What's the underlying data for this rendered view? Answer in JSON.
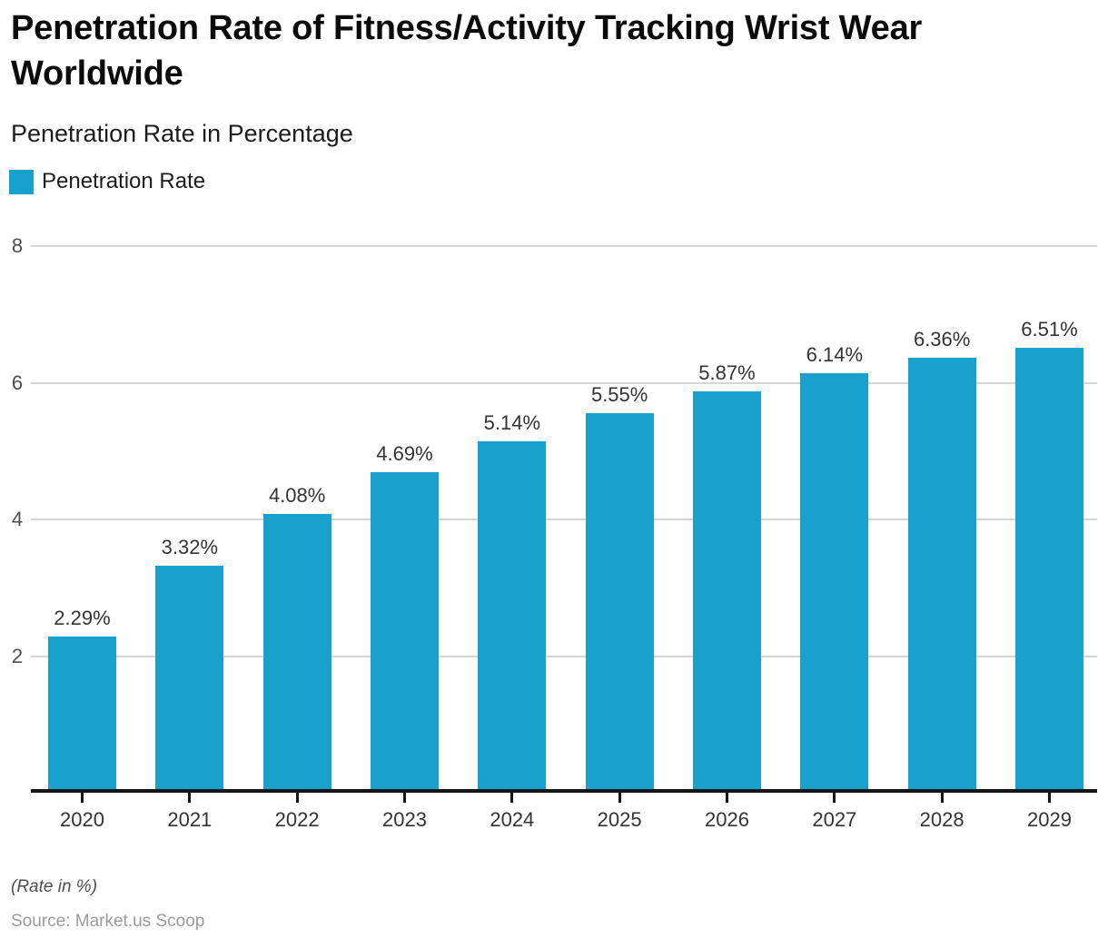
{
  "header": {
    "title": "Penetration Rate of Fitness/Activity Tracking Wrist Wear Worldwide",
    "subtitle": "Penetration Rate in Percentage"
  },
  "legend": {
    "label": "Penetration Rate"
  },
  "footer": {
    "note": "(Rate in %)",
    "source": "Source: Market.us Scoop"
  },
  "colors": {
    "bar": "#18A1CD",
    "gridline": "#D5D5D5",
    "axis": "#141414",
    "title_text": "#0B0B0B",
    "label_text": "#333333",
    "ytick_text": "#4E4E4E",
    "source_text": "#9B9B9B"
  },
  "chart_data": {
    "type": "bar",
    "title": "Penetration Rate of Fitness/Activity Tracking Wrist Wear Worldwide",
    "subtitle": "Penetration Rate in Percentage",
    "categories": [
      "2020",
      "2021",
      "2022",
      "2023",
      "2024",
      "2025",
      "2026",
      "2027",
      "2028",
      "2029"
    ],
    "series": [
      {
        "name": "Penetration Rate",
        "values": [
          2.29,
          3.32,
          4.08,
          4.69,
          5.14,
          5.55,
          5.87,
          6.14,
          6.36,
          6.51
        ],
        "labels": [
          "2.29%",
          "3.32%",
          "4.08%",
          "4.69%",
          "5.14%",
          "5.55%",
          "5.87%",
          "6.14%",
          "6.36%",
          "6.51%"
        ]
      }
    ],
    "xlabel": "",
    "ylabel": "",
    "ylim": [
      0,
      8
    ],
    "yticks": [
      2,
      4,
      6,
      8
    ],
    "grid": true,
    "legend_position": "top-left",
    "annotations": [
      "(Rate in %)",
      "Source: Market.us Scoop"
    ]
  }
}
